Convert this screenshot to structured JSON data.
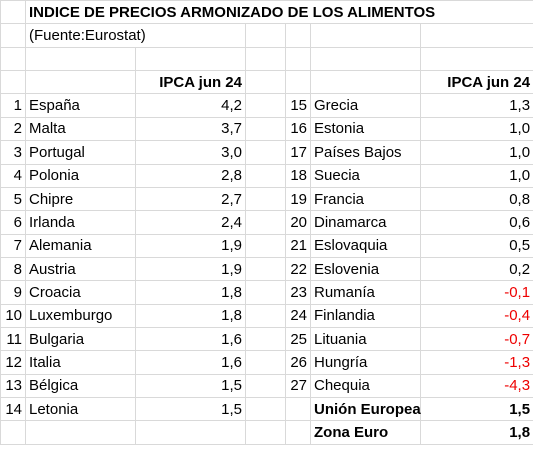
{
  "title": "INDICE DE PRECIOS ARMONIZADO DE LOS ALIMENTOS",
  "source": "(Fuente:Eurostat)",
  "left_table": {
    "header": "IPCA jun 24",
    "rows": [
      [
        "1",
        "España",
        "4,2"
      ],
      [
        "2",
        "Malta",
        "3,7"
      ],
      [
        "3",
        "Portugal",
        "3,0"
      ],
      [
        "4",
        "Polonia",
        "2,8"
      ],
      [
        "5",
        "Chipre",
        "2,7"
      ],
      [
        "6",
        "Irlanda",
        "2,4"
      ],
      [
        "7",
        "Alemania",
        "1,9"
      ],
      [
        "8",
        "Austria",
        "1,9"
      ],
      [
        "9",
        "Croacia",
        "1,8"
      ],
      [
        "10",
        "Luxemburgo",
        "1,8"
      ],
      [
        "11",
        "Bulgaria",
        "1,6"
      ],
      [
        "12",
        "Italia",
        "1,6"
      ],
      [
        "13",
        "Bélgica",
        "1,5"
      ],
      [
        "14",
        "Letonia",
        "1,5"
      ]
    ]
  },
  "right_table": {
    "header": "IPCA jun 24",
    "rows": [
      [
        "15",
        "Grecia",
        "1,3"
      ],
      [
        "16",
        "Estonia",
        "1,0"
      ],
      [
        "17",
        "Países Bajos",
        "1,0"
      ],
      [
        "18",
        "Suecia",
        "1,0"
      ],
      [
        "19",
        "Francia",
        "0,8"
      ],
      [
        "20",
        "Dinamarca",
        "0,6"
      ],
      [
        "21",
        "Eslovaquia",
        "0,5"
      ],
      [
        "22",
        "Eslovenia",
        "0,2"
      ],
      [
        "23",
        "Rumanía",
        "-0,1"
      ],
      [
        "24",
        "Finlandia",
        "-0,4"
      ],
      [
        "25",
        "Lituania",
        "-0,7"
      ],
      [
        "26",
        "Hungría",
        "-1,3"
      ],
      [
        "27",
        "Chequia",
        "-4,3"
      ]
    ],
    "totals": [
      [
        "Unión Europea",
        "1,5"
      ],
      [
        "Zona Euro",
        "1,8"
      ]
    ]
  },
  "negative_color": "#ee0000"
}
